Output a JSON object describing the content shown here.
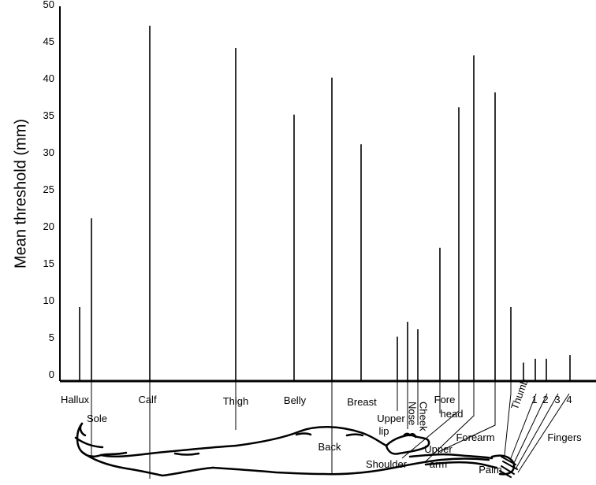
{
  "chart_data": {
    "type": "bar",
    "ylabel": "Mean threshold (mm)",
    "xlabel": "",
    "ylim": [
      0,
      50
    ],
    "yticks": [
      0,
      5,
      10,
      15,
      20,
      25,
      30,
      35,
      40,
      45,
      50
    ],
    "categories": [
      {
        "name": "Hallux",
        "value": 10
      },
      {
        "name": "Sole",
        "value": 22
      },
      {
        "name": "Calf",
        "value": 48
      },
      {
        "name": "Thigh",
        "value": 45
      },
      {
        "name": "Belly",
        "value": 36
      },
      {
        "name": "Back",
        "value": 41
      },
      {
        "name": "Breast",
        "value": 32
      },
      {
        "name": "Upper lip",
        "value": 6
      },
      {
        "name": "Nose",
        "value": 8
      },
      {
        "name": "Cheek",
        "value": 7
      },
      {
        "name": "Fore head",
        "value": 18
      },
      {
        "name": "Shoulder",
        "value": 37
      },
      {
        "name": "Upper arm",
        "value": 44
      },
      {
        "name": "Forearm",
        "value": 39
      },
      {
        "name": "Thumb",
        "value": 10
      },
      {
        "name": "Palm",
        "value": 3
      },
      {
        "name": "1",
        "value": 2.5
      },
      {
        "name": "2",
        "value": 3
      },
      {
        "name": "3",
        "value": 3
      },
      {
        "name": "4",
        "value": 3.5
      }
    ],
    "group_labels": [
      "Fingers"
    ],
    "grid": false,
    "legend": "none"
  }
}
